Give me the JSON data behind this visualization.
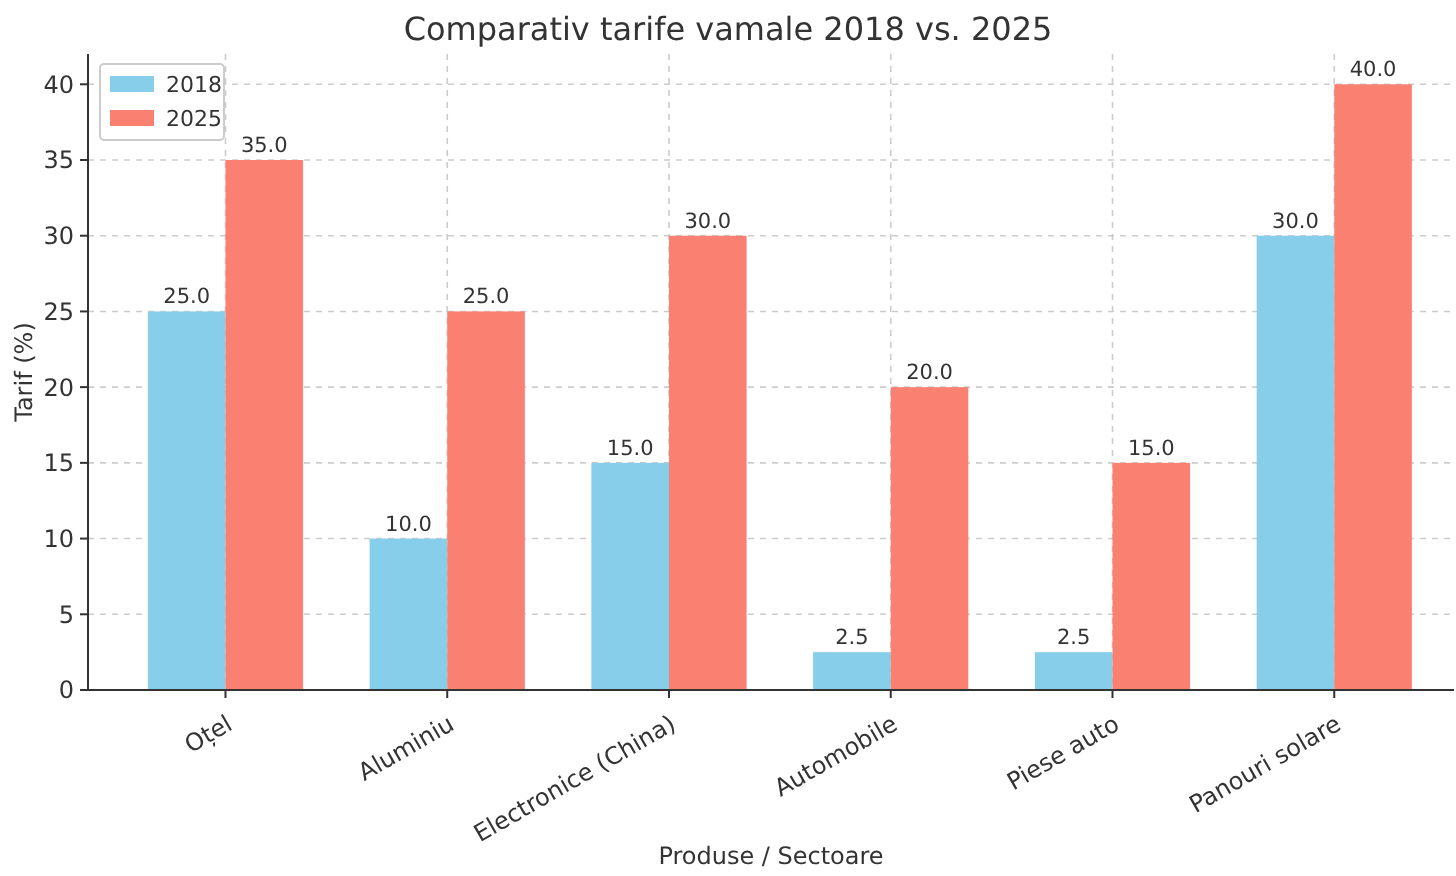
{
  "chart_data": {
    "type": "bar",
    "title": "Comparativ tarife vamale 2018 vs. 2025",
    "xlabel": "Produse / Sectoare",
    "ylabel": "Tarif (%)",
    "categories": [
      "Oțel",
      "Aluminiu",
      "Electronice (China)",
      "Automobile",
      "Piese auto",
      "Panouri solare"
    ],
    "series": [
      {
        "name": "2018",
        "color": "#87ceeb",
        "values": [
          25,
          10,
          15,
          2.5,
          2.5,
          30
        ],
        "value_labels": [
          "25.0",
          "10.0",
          "15.0",
          "2.5",
          "2.5",
          "30.0"
        ]
      },
      {
        "name": "2025",
        "color": "#fa8072",
        "values": [
          35,
          25,
          30,
          20,
          15,
          40
        ],
        "value_labels": [
          "35.0",
          "25.0",
          "30.0",
          "20.0",
          "15.0",
          "40.0"
        ]
      }
    ],
    "ylim": [
      0,
      42
    ],
    "yticks": [
      0,
      5,
      10,
      15,
      20,
      25,
      30,
      35,
      40
    ],
    "grid": true,
    "legend": "top left"
  }
}
